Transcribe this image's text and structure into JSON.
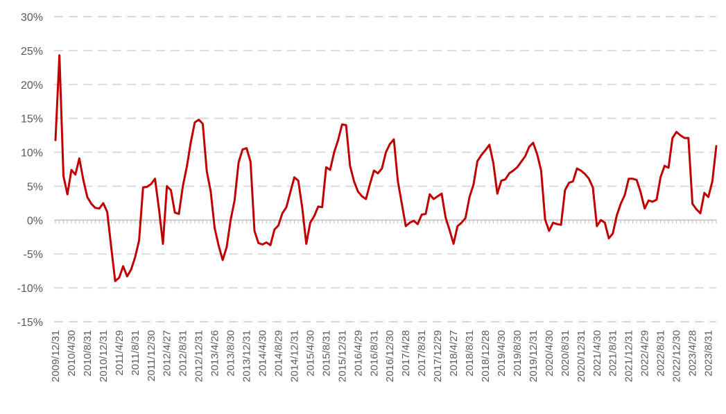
{
  "chart_data": {
    "type": "line",
    "ylim": [
      -15,
      30
    ],
    "y_ticks": [
      "-15%",
      "-10%",
      "-5%",
      "0%",
      "5%",
      "10%",
      "15%",
      "20%",
      "25%",
      "30%"
    ],
    "x_ticks": [
      "2009/12/31",
      "2010/4/30",
      "2010/8/31",
      "2010/12/31",
      "2011/4/29",
      "2011/8/31",
      "2011/12/30",
      "2012/4/27",
      "2012/8/31",
      "2012/12/31",
      "2013/4/26",
      "2013/8/30",
      "2013/12/31",
      "2014/4/30",
      "2014/8/29",
      "2014/12/31",
      "2015/4/30",
      "2015/8/31",
      "2015/12/31",
      "2016/4/29",
      "2016/8/31",
      "2016/12/30",
      "2017/4/28",
      "2017/8/31",
      "2017/12/29",
      "2018/4/27",
      "2018/8/31",
      "2018/12/28",
      "2019/4/30",
      "2019/8/30",
      "2019/12/31",
      "2020/4/30",
      "2020/8/31",
      "2020/12/31",
      "2021/4/30",
      "2021/8/31",
      "2021/12/31",
      "2022/4/29",
      "2022/8/31",
      "2022/12/30",
      "2023/4/28",
      "2023/8/31"
    ],
    "grid": "horizontal dashed",
    "series": [
      {
        "color": "#c00000",
        "values": [
          11.8,
          24.3,
          6.5,
          3.8,
          7.4,
          6.7,
          9.1,
          5.9,
          3.4,
          2.4,
          1.8,
          1.7,
          2.5,
          1.2,
          -4.0,
          -9.0,
          -8.5,
          -6.8,
          -8.3,
          -7.3,
          -5.5,
          -3.0,
          4.8,
          4.9,
          5.3,
          6.1,
          1.6,
          -3.5,
          5.0,
          4.4,
          1.1,
          0.9,
          5.0,
          7.9,
          11.5,
          14.4,
          14.8,
          14.2,
          7.2,
          4.2,
          -1.2,
          -3.8,
          -5.9,
          -4.0,
          0.0,
          2.9,
          8.5,
          10.4,
          10.6,
          8.6,
          -1.6,
          -3.4,
          -3.6,
          -3.3,
          -3.7,
          -1.4,
          -0.8,
          1.0,
          1.9,
          4.1,
          6.3,
          5.8,
          1.8,
          -3.5,
          -0.4,
          0.6,
          2.0,
          1.9,
          7.8,
          7.4,
          10.0,
          11.8,
          14.1,
          14.0,
          8.0,
          5.7,
          4.2,
          3.5,
          3.1,
          5.3,
          7.3,
          6.9,
          7.6,
          10.0,
          11.2,
          11.9,
          5.8,
          2.4,
          -0.9,
          -0.4,
          -0.1,
          -0.6,
          0.8,
          0.9,
          3.8,
          3.1,
          3.5,
          3.9,
          0.4,
          -1.5,
          -3.5,
          -0.9,
          -0.4,
          0.3,
          3.4,
          5.2,
          8.7,
          9.6,
          10.3,
          11.1,
          8.4,
          3.9,
          5.8,
          6.0,
          6.9,
          7.3,
          7.8,
          8.6,
          9.4,
          10.8,
          11.4,
          9.7,
          7.3,
          0.1,
          -1.6,
          -0.4,
          -0.6,
          -0.7,
          4.4,
          5.5,
          5.7,
          7.6,
          7.3,
          6.8,
          6.1,
          4.8,
          -0.9,
          0.0,
          -0.4,
          -2.7,
          -2.0,
          0.7,
          2.4,
          3.7,
          6.1,
          6.1,
          5.9,
          4.1,
          1.7,
          2.9,
          2.7,
          3.0,
          6.3,
          8.0,
          7.7,
          12.1,
          13.0,
          12.5,
          12.1,
          12.1,
          2.4,
          1.6,
          1.0,
          4.0,
          3.4,
          5.7,
          10.9
        ]
      }
    ]
  }
}
